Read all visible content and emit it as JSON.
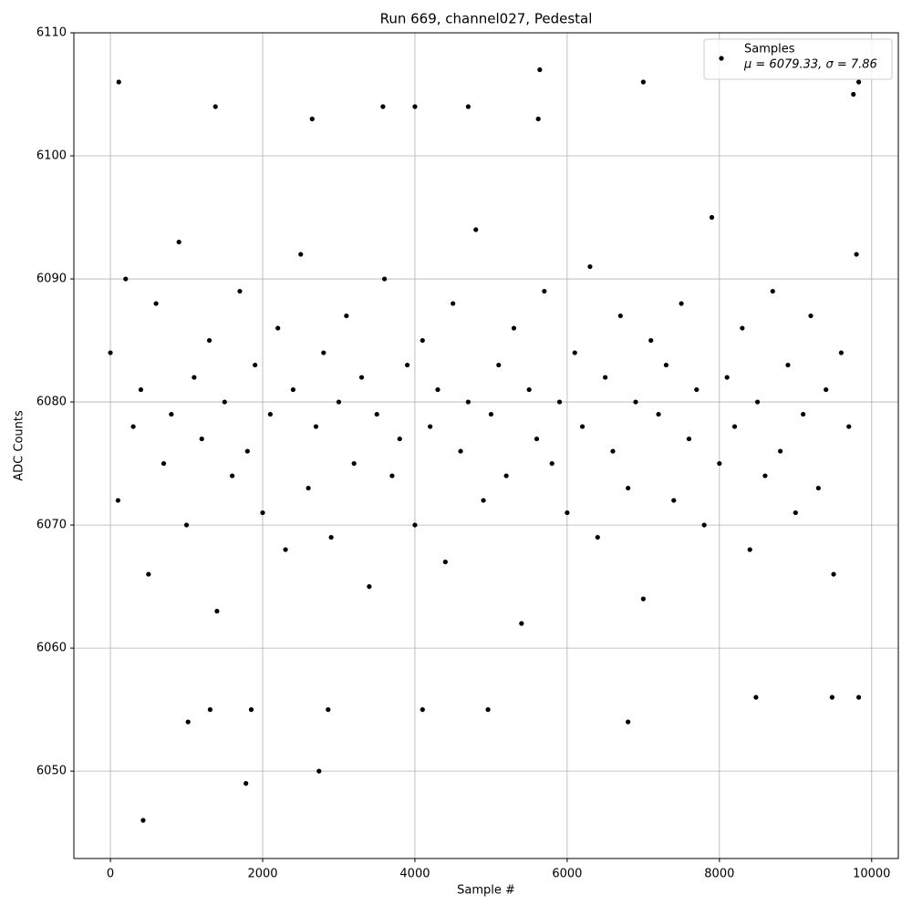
{
  "chart_data": {
    "type": "scatter",
    "title": "Run 669, channel027, Pedestal",
    "x_label": "Sample #",
    "y_label": "ADC Counts",
    "series": [
      {
        "name": "Samples",
        "color": "#000000",
        "x": [
          0,
          100,
          200,
          300,
          400,
          500,
          600,
          700,
          800,
          900,
          1000,
          1100,
          1200,
          1300,
          1400,
          1500,
          1600,
          1700,
          1800,
          1900,
          2000,
          2100,
          2200,
          2300,
          2400,
          2500,
          2600,
          2700,
          2800,
          2900,
          3000,
          3100,
          3200,
          3300,
          3400,
          3500,
          3600,
          3700,
          3800,
          3900,
          4000,
          4100,
          4200,
          4300,
          4400,
          4500,
          4600,
          4700,
          4800,
          4900,
          5000,
          5100,
          5200,
          5300,
          5400,
          5500,
          5600,
          5700,
          5800,
          5900,
          6000,
          6100,
          6200,
          6300,
          6400,
          6500,
          6600,
          6700,
          6800,
          6900,
          7000,
          7100,
          7200,
          7300,
          7400,
          7500,
          7600,
          7700,
          7800,
          7900,
          8000,
          8100,
          8200,
          8300,
          8400,
          8500,
          8600,
          8700,
          8800,
          8900,
          9000,
          9100,
          9200,
          9300,
          9400,
          9500,
          9600,
          9700,
          9800,
          110,
          430,
          1780,
          2740,
          1380,
          2650,
          5640,
          6800,
          7000,
          1020,
          4100,
          4960,
          9760,
          8480,
          9480,
          9830,
          1310,
          1850,
          2860,
          5620,
          4700,
          4000,
          3580,
          9830
        ],
        "values": [
          6084,
          6072,
          6090,
          6078,
          6081,
          6066,
          6088,
          6075,
          6079,
          6093,
          6070,
          6082,
          6077,
          6085,
          6063,
          6080,
          6074,
          6089,
          6076,
          6083,
          6071,
          6079,
          6086,
          6068,
          6081,
          6092,
          6073,
          6078,
          6084,
          6069,
          6080,
          6087,
          6075,
          6082,
          6065,
          6079,
          6090,
          6074,
          6077,
          6083,
          6070,
          6085,
          6078,
          6081,
          6067,
          6088,
          6076,
          6080,
          6094,
          6072,
          6079,
          6083,
          6074,
          6086,
          6062,
          6081,
          6077,
          6089,
          6075,
          6080,
          6071,
          6084,
          6078,
          6091,
          6069,
          6082,
          6076,
          6087,
          6073,
          6080,
          6064,
          6085,
          6079,
          6083,
          6072,
          6088,
          6077,
          6081,
          6070,
          6095,
          6075,
          6082,
          6078,
          6086,
          6068,
          6080,
          6074,
          6089,
          6076,
          6083,
          6071,
          6079,
          6087,
          6073,
          6081,
          6066,
          6084,
          6078,
          6092,
          6106,
          6046,
          6049,
          6050,
          6104,
          6103,
          6107,
          6054,
          6106,
          6054,
          6055,
          6055,
          6105,
          6056,
          6056,
          6056,
          6055,
          6055,
          6055,
          6103,
          6104,
          6104,
          6104,
          6106
        ]
      }
    ],
    "legend_stats": "μ = 6079.33, σ = 7.86",
    "xlim": [
      -480,
      10350
    ],
    "ylim": [
      6042.9,
      6110
    ],
    "xticks": [
      0,
      2000,
      4000,
      6000,
      8000,
      10000
    ],
    "yticks": [
      6050,
      6060,
      6070,
      6080,
      6090,
      6100,
      6110
    ],
    "grid": true,
    "legend": "upper right"
  }
}
